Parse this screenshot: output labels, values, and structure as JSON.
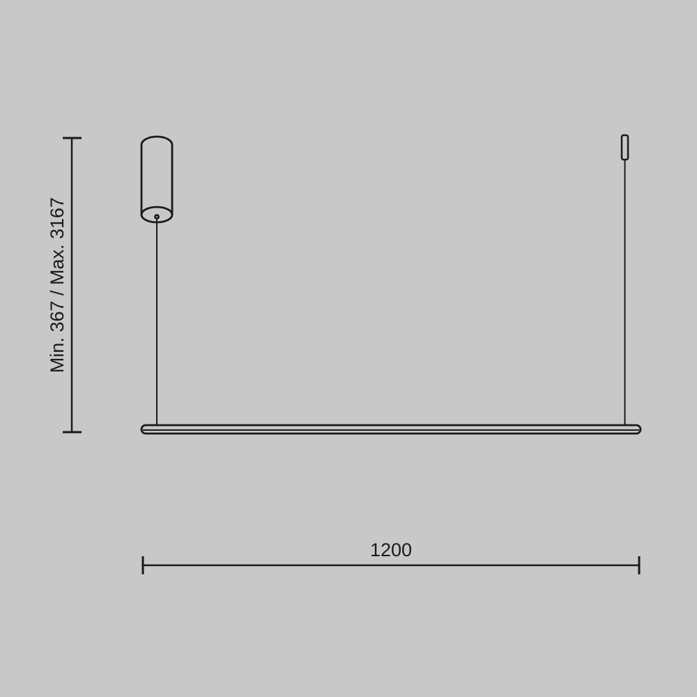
{
  "diagram": {
    "height_dimension_label": "Min. 367 / Max. 3167",
    "width_dimension_label": "1200",
    "colors": {
      "background": "#c8c8c8",
      "line": "#1a1a1a"
    }
  }
}
